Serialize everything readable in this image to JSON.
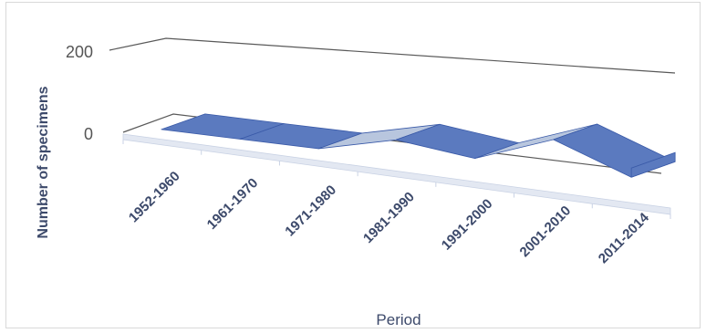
{
  "chart_data": {
    "type": "area",
    "title": "",
    "xlabel": "Period",
    "ylabel": "Number of specimens",
    "ylim": [
      0,
      200
    ],
    "yticks": [
      "0",
      "200"
    ],
    "categories": [
      "1952-1960",
      "1961-1970",
      "1971-1980",
      "1981-1990",
      "1991-2000",
      "2001-2010",
      "2011-2014"
    ],
    "series": [
      {
        "values": [
          15,
          8,
          2,
          35,
          10,
          60,
          0
        ]
      }
    ],
    "grid": true,
    "legend": "none",
    "style": "3d-ribbon",
    "colors": {
      "ribbon_top": "#b8c6de",
      "ribbon_front": "#5b7abf",
      "ribbon_edge": "#3a5aa8",
      "axis_text": "#3d4a6b",
      "gridline": "#595959"
    }
  }
}
